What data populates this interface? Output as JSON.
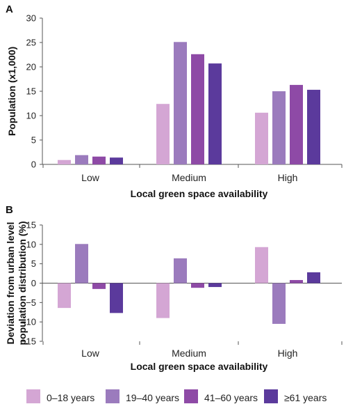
{
  "chart_data": [
    {
      "panel": "A",
      "type": "bar",
      "categories": [
        "Low",
        "Medium",
        "High"
      ],
      "series": [
        {
          "name": "0–18 years",
          "values": [
            0.9,
            12.4,
            10.6
          ]
        },
        {
          "name": "19–40 years",
          "values": [
            1.9,
            25.1,
            15.0
          ]
        },
        {
          "name": "41–60 years",
          "values": [
            1.6,
            22.6,
            16.3
          ]
        },
        {
          "name": "≥61 years",
          "values": [
            1.4,
            20.7,
            15.3
          ]
        }
      ],
      "xlabel": "Local green space availability",
      "ylabel": "Population (x1,000)",
      "ylim": [
        0,
        30
      ],
      "yticks": [
        "0",
        "5",
        "10",
        "15",
        "20",
        "25",
        "30"
      ],
      "grid": false
    },
    {
      "panel": "B",
      "type": "bar",
      "categories": [
        "Low",
        "Medium",
        "High"
      ],
      "series": [
        {
          "name": "0–18 years",
          "values": [
            -6.4,
            -9.0,
            9.3
          ]
        },
        {
          "name": "19–40 years",
          "values": [
            10.1,
            6.4,
            -10.5
          ]
        },
        {
          "name": "41–60 years",
          "values": [
            -1.5,
            -1.2,
            0.8
          ]
        },
        {
          "name": "≥61 years",
          "values": [
            -7.7,
            -1.0,
            2.8
          ]
        }
      ],
      "xlabel": "Local green space availability",
      "ylabel_lines": [
        "Deviation from urban level",
        "population distribution (%)"
      ],
      "ylim": [
        -15,
        15
      ],
      "yticks": [
        "−15",
        "−10",
        "−5",
        "0",
        "5",
        "10",
        "15"
      ],
      "grid": false
    }
  ],
  "legend": {
    "position": "bottom",
    "items": [
      {
        "label": "0–18 years",
        "color": "#d4a6d4"
      },
      {
        "label": "19–40 years",
        "color": "#9b7bbd"
      },
      {
        "label": "41–60 years",
        "color": "#8e4aa6"
      },
      {
        "label": "≥61 years",
        "color": "#5b3a9c"
      }
    ]
  }
}
